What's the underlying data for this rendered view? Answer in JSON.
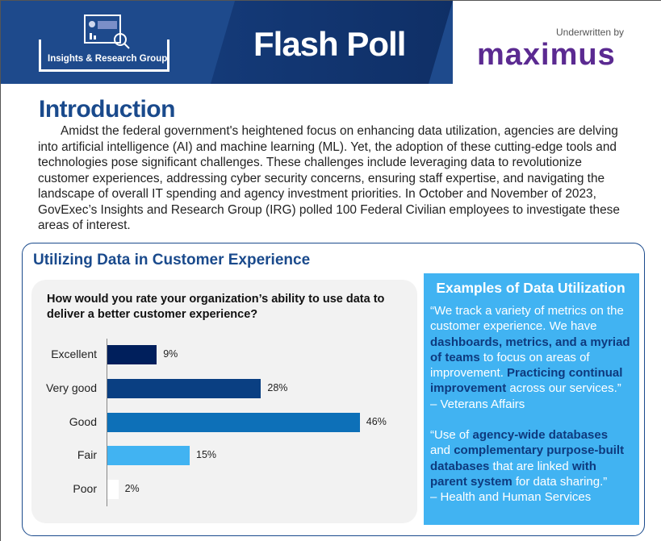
{
  "banner": {
    "logo_text": "Insights & Research Group",
    "title": "Flash Poll",
    "underwritten": "Underwritten by",
    "sponsor": "maximus"
  },
  "intro": {
    "heading": "Introduction",
    "body": "Amidst the federal government's heightened focus on enhancing data utilization, agencies are delving into artificial intelligence (AI) and machine learning (ML). Yet, the adoption of these cutting-edge tools and technologies pose significant challenges. These challenges include leveraging data to revolutionize customer experiences, addressing cyber security concerns, ensuring staff expertise, and navigating the landscape of overall IT spending and agency investment priorities. In October and November of 2023, GovExec’s Insights and Research Group (IRG) polled 100 Federal Civilian employees to investigate these areas of interest."
  },
  "section": {
    "title": "Utilizing Data in Customer Experience"
  },
  "chart_data": {
    "type": "bar",
    "orientation": "horizontal",
    "title": "How would you rate your organization’s ability to use data to deliver a better customer experience?",
    "categories": [
      "Excellent",
      "Very good",
      "Good",
      "Fair",
      "Poor"
    ],
    "values": [
      9,
      28,
      46,
      15,
      2
    ],
    "labels": [
      "9%",
      "28%",
      "46%",
      "15%",
      "2%"
    ],
    "colors": [
      "#001f5c",
      "#0a3f82",
      "#0d70b8",
      "#41b3f2",
      "#ffffff"
    ],
    "unit": "%"
  },
  "examples": {
    "title": "Examples of Data Utilization",
    "q1": [
      "“We track a variety of metrics on the customer experience. We have ",
      "dashboards, metrics, and a myriad of teams",
      " to focus on areas of improvement. ",
      "Practicing continual improvement",
      " across our services.”"
    ],
    "q1_src": " – Veterans Affairs",
    "q2": [
      "“Use of ",
      "agency-wide databases",
      " and ",
      "complementary purpose-built databases",
      " that are linked ",
      "with parent system",
      " for data sharing.”"
    ],
    "q2_src": "– Health and Human Services"
  }
}
